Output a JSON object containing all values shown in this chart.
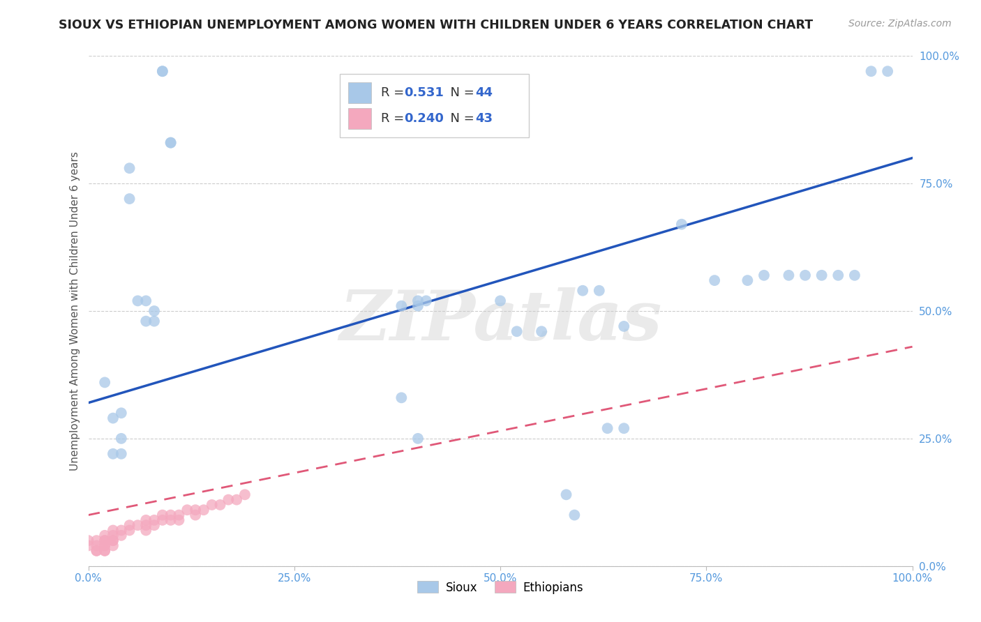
{
  "title": "SIOUX VS ETHIOPIAN UNEMPLOYMENT AMONG WOMEN WITH CHILDREN UNDER 6 YEARS CORRELATION CHART",
  "source": "Source: ZipAtlas.com",
  "ylabel": "Unemployment Among Women with Children Under 6 years",
  "xlim": [
    0,
    1.0
  ],
  "ylim": [
    0,
    1.0
  ],
  "xticks": [
    0.0,
    0.25,
    0.5,
    0.75,
    1.0
  ],
  "yticks": [
    0.0,
    0.25,
    0.5,
    0.75,
    1.0
  ],
  "xticklabels": [
    "0.0%",
    "25.0%",
    "50.0%",
    "75.0%",
    "100.0%"
  ],
  "yticklabels": [
    "0.0%",
    "25.0%",
    "50.0%",
    "75.0%",
    "100.0%"
  ],
  "legend_labels": [
    "Sioux",
    "Ethiopians"
  ],
  "sioux_color": "#a8c8e8",
  "ethiopian_color": "#f4a8be",
  "sioux_line_color": "#2255bb",
  "ethiopian_line_color": "#e05878",
  "R_sioux": 0.531,
  "N_sioux": 44,
  "R_ethiopian": 0.24,
  "N_ethiopian": 43,
  "background_color": "#ffffff",
  "watermark": "ZIPatlas",
  "tick_color": "#5599dd",
  "sioux_regression": [
    0.0,
    1.0,
    0.32,
    0.8
  ],
  "ethiopian_regression": [
    0.0,
    1.0,
    0.1,
    0.43
  ],
  "sioux_x": [
    0.09,
    0.09,
    0.1,
    0.1,
    0.05,
    0.05,
    0.06,
    0.07,
    0.07,
    0.08,
    0.08,
    0.02,
    0.03,
    0.04,
    0.04,
    0.03,
    0.04,
    0.4,
    0.41,
    0.5,
    0.52,
    0.55,
    0.6,
    0.62,
    0.65,
    0.72,
    0.76,
    0.8,
    0.82,
    0.85,
    0.87,
    0.89,
    0.91,
    0.93,
    0.95,
    0.97,
    0.63,
    0.65,
    0.58,
    0.59,
    0.38,
    0.4,
    0.38,
    0.4
  ],
  "sioux_y": [
    0.97,
    0.97,
    0.83,
    0.83,
    0.78,
    0.72,
    0.52,
    0.52,
    0.48,
    0.48,
    0.5,
    0.36,
    0.29,
    0.3,
    0.22,
    0.22,
    0.25,
    0.52,
    0.52,
    0.52,
    0.46,
    0.46,
    0.54,
    0.54,
    0.47,
    0.67,
    0.56,
    0.56,
    0.57,
    0.57,
    0.57,
    0.57,
    0.57,
    0.57,
    0.97,
    0.97,
    0.27,
    0.27,
    0.14,
    0.1,
    0.51,
    0.51,
    0.33,
    0.25
  ],
  "ethiopian_x": [
    0.0,
    0.0,
    0.01,
    0.01,
    0.01,
    0.01,
    0.02,
    0.02,
    0.02,
    0.02,
    0.02,
    0.02,
    0.02,
    0.03,
    0.03,
    0.03,
    0.03,
    0.03,
    0.04,
    0.04,
    0.05,
    0.05,
    0.06,
    0.07,
    0.07,
    0.07,
    0.08,
    0.08,
    0.09,
    0.09,
    0.1,
    0.1,
    0.11,
    0.11,
    0.12,
    0.13,
    0.13,
    0.14,
    0.15,
    0.16,
    0.17,
    0.18,
    0.19
  ],
  "ethiopian_y": [
    0.05,
    0.04,
    0.05,
    0.04,
    0.03,
    0.03,
    0.06,
    0.05,
    0.05,
    0.04,
    0.04,
    0.03,
    0.03,
    0.07,
    0.06,
    0.05,
    0.05,
    0.04,
    0.07,
    0.06,
    0.08,
    0.07,
    0.08,
    0.09,
    0.08,
    0.07,
    0.09,
    0.08,
    0.1,
    0.09,
    0.1,
    0.09,
    0.1,
    0.09,
    0.11,
    0.11,
    0.1,
    0.11,
    0.12,
    0.12,
    0.13,
    0.13,
    0.14
  ]
}
